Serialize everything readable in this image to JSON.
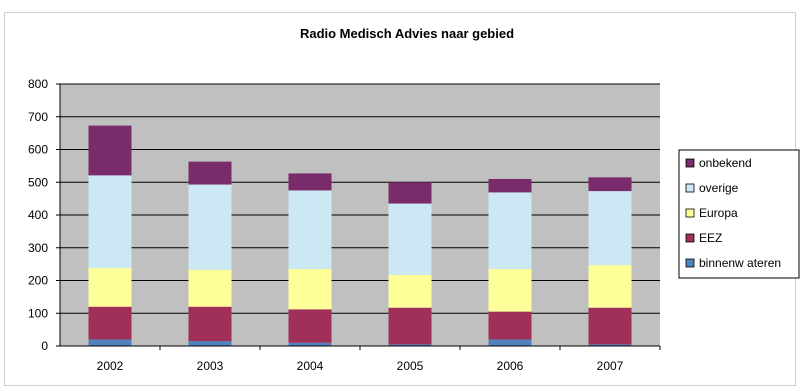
{
  "chart_data": {
    "type": "bar",
    "stacked": true,
    "title": "Radio Medisch Advies naar gebied",
    "xlabel": "",
    "ylabel": "",
    "categories": [
      "2002",
      "2003",
      "2004",
      "2005",
      "2006",
      "2007"
    ],
    "ylim": [
      0,
      800
    ],
    "yticks": [
      "0",
      "100",
      "200",
      "300",
      "400",
      "500",
      "600",
      "700",
      "800"
    ],
    "grid": true,
    "legend_position": "right",
    "series": [
      {
        "name": "binnenw ateren",
        "color": "#4f81bd",
        "values": [
          20,
          15,
          10,
          5,
          20,
          5
        ]
      },
      {
        "name": "EEZ",
        "color": "#a0305a",
        "values": [
          100,
          105,
          102,
          112,
          85,
          112
        ]
      },
      {
        "name": "Europa",
        "color": "#ffff99",
        "values": [
          118,
          113,
          123,
          100,
          130,
          130
        ]
      },
      {
        "name": "overige",
        "color": "#cce8f4",
        "values": [
          283,
          260,
          240,
          218,
          234,
          226
        ]
      },
      {
        "name": "onbekend",
        "color": "#7a2b6c",
        "values": [
          152,
          70,
          52,
          65,
          41,
          42
        ]
      }
    ],
    "legend_order": [
      "onbekend",
      "overige",
      "Europa",
      "EEZ",
      "binnenw ateren"
    ]
  }
}
